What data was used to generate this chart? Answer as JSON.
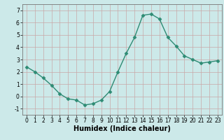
{
  "x": [
    0,
    1,
    2,
    3,
    4,
    5,
    6,
    7,
    8,
    9,
    10,
    11,
    12,
    13,
    14,
    15,
    16,
    17,
    18,
    19,
    20,
    21,
    22,
    23
  ],
  "y": [
    2.4,
    2.0,
    1.5,
    0.9,
    0.2,
    -0.2,
    -0.3,
    -0.7,
    -0.6,
    -0.3,
    0.4,
    2.0,
    3.5,
    4.8,
    6.6,
    6.7,
    6.3,
    4.8,
    4.1,
    3.3,
    3.0,
    2.7,
    2.8,
    2.9
  ],
  "line_color": "#2e8b74",
  "marker": "D",
  "markersize": 2.5,
  "linewidth": 1.0,
  "xlabel": "Humidex (Indice chaleur)",
  "xlabel_fontsize": 7,
  "ylim": [
    -1.5,
    7.5
  ],
  "xlim": [
    -0.5,
    23.5
  ],
  "yticks": [
    -1,
    0,
    1,
    2,
    3,
    4,
    5,
    6,
    7
  ],
  "xticks": [
    0,
    1,
    2,
    3,
    4,
    5,
    6,
    7,
    8,
    9,
    10,
    11,
    12,
    13,
    14,
    15,
    16,
    17,
    18,
    19,
    20,
    21,
    22,
    23
  ],
  "bg_color": "#cce9e9",
  "grid_color_major": "#c8a8a8",
  "grid_color_minor": "#c8a8a8",
  "tick_fontsize": 5.5,
  "fig_bg": "#cce9e9",
  "spine_color": "#777777"
}
